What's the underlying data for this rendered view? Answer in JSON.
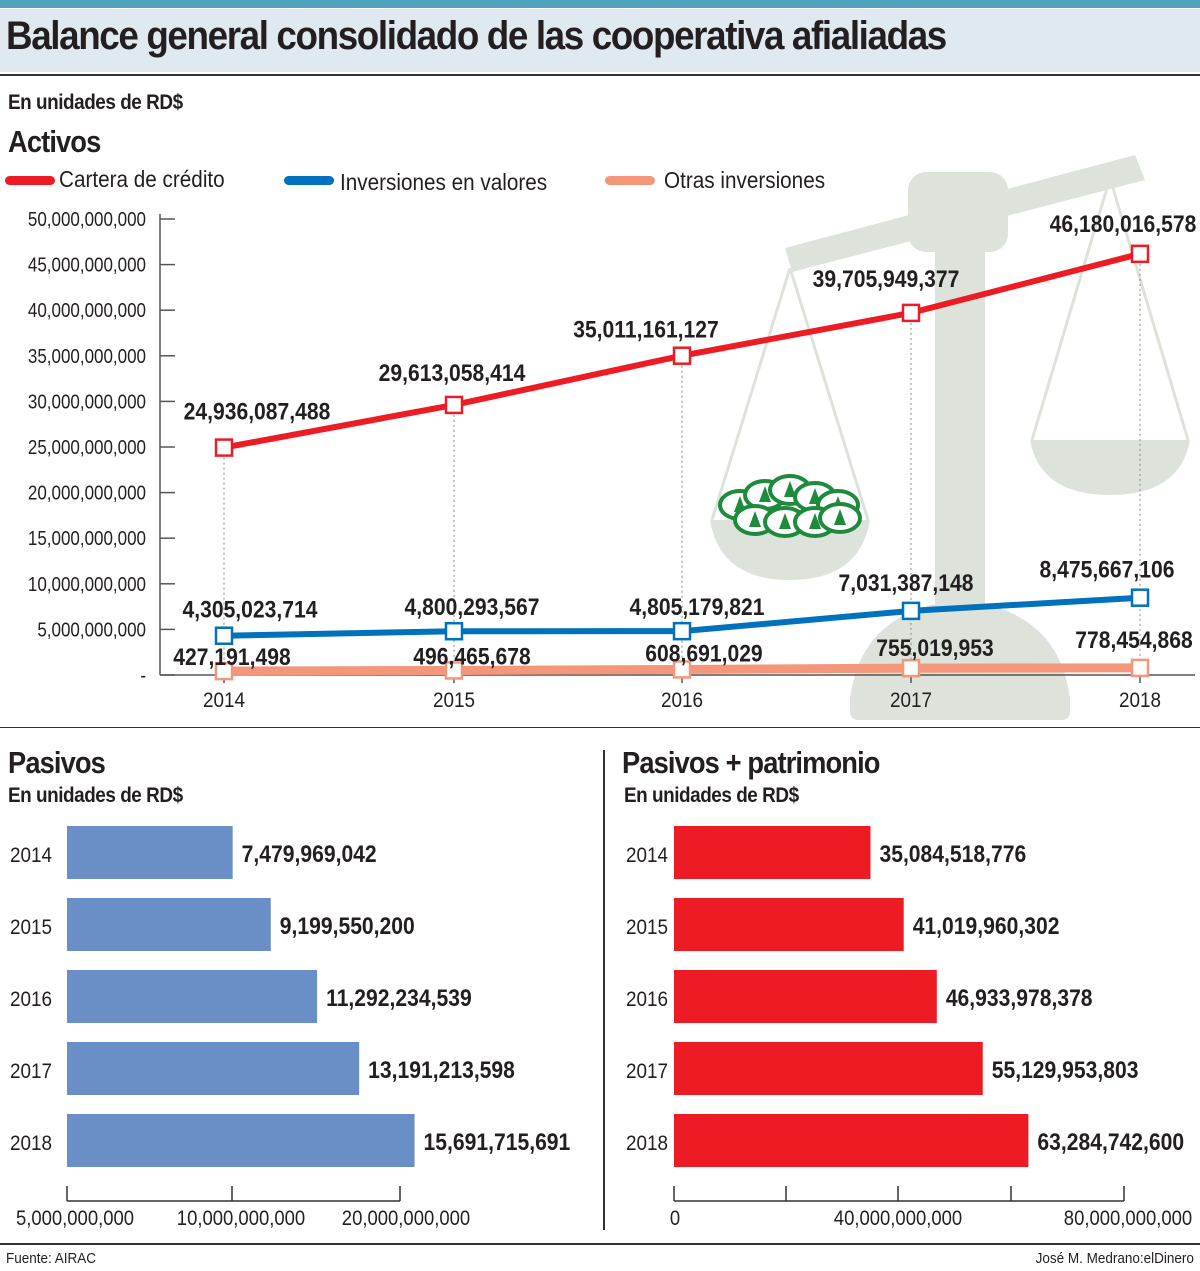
{
  "title": "Balance general consolidado de las cooperativa afialiadas",
  "units": "En unidades de RD$",
  "footer": {
    "source": "Fuente: AIRAC",
    "credit": "José M. Medrano:elDinero"
  },
  "colors": {
    "cartera": "#ed1c24",
    "inversiones": "#0071bc",
    "otras": "#f4967a",
    "pasivos": "#6a8fc6",
    "pasivos_patrimonio": "#ed1c24",
    "header": "#dfe9ef",
    "topbar": "#4ea3bd",
    "illustration": "#dde3da",
    "coins": "#1e8a3c"
  },
  "chart_data": [
    {
      "type": "line",
      "title": "Activos",
      "subtitle": "En unidades de RD$",
      "x": [
        "2014",
        "2015",
        "2016",
        "2017",
        "2018"
      ],
      "ylim": [
        0,
        50000000000
      ],
      "yticks": [
        "-",
        "5,000,000,000",
        "10,000,000,000",
        "15,000,000,000",
        "20,000,000,000",
        "25,000,000,000",
        "30,000,000,000",
        "35,000,000,000",
        "40,000,000,000",
        "45,000,000,000",
        "50,000,000,000"
      ],
      "legend_position": "top-left",
      "grid": false,
      "series": [
        {
          "name": "Cartera de crédito",
          "color": "#ed1c24",
          "values": [
            24936087488,
            29613058414,
            35011161127,
            39705949377,
            46180016578
          ],
          "labels": [
            "24,936,087,488",
            "29,613,058,414",
            "35,011,161,127",
            "39,705,949,377",
            "46,180,016,578"
          ]
        },
        {
          "name": "Inversiones en valores",
          "color": "#0071bc",
          "values": [
            4305023714,
            4800293567,
            4805179821,
            7031387148,
            8475667106
          ],
          "labels": [
            "4,305,023,714",
            "4,800,293,567",
            "4,805,179,821",
            "7,031,387,148",
            "8,475,667,106"
          ]
        },
        {
          "name": "Otras inversiones",
          "color": "#f4967a",
          "values": [
            427191498,
            496465678,
            608691029,
            755019953,
            778454868
          ],
          "labels": [
            "427,191,498",
            "496,465,678",
            "608,691,029",
            "755,019,953",
            "778,454,868"
          ]
        }
      ]
    },
    {
      "type": "bar",
      "orientation": "horizontal",
      "title": "Pasivos",
      "subtitle": "En unidades de RD$",
      "categories": [
        "2014",
        "2015",
        "2016",
        "2017",
        "2018"
      ],
      "values": [
        7479969042,
        9199550200,
        11292234539,
        13191213598,
        15691715691
      ],
      "labels": [
        "7,479,969,042",
        "9,199,550,200",
        "11,292,234,539",
        "13,191,213,598",
        "15,691,715,691"
      ],
      "xticks": [
        "5,000,000,000",
        "10,000,000,000",
        "20,000,000,000"
      ],
      "color": "#6a8fc6"
    },
    {
      "type": "bar",
      "orientation": "horizontal",
      "title": "Pasivos + patrimonio",
      "subtitle": "En unidades de RD$",
      "categories": [
        "2014",
        "2015",
        "2016",
        "2017",
        "2018"
      ],
      "values": [
        35084518776,
        41019960302,
        46933978378,
        55129953803,
        63284742600
      ],
      "labels": [
        "35,084,518,776",
        "41,019,960,302",
        "46,933,978,378",
        "55,129,953,803",
        "63,284,742,600"
      ],
      "xticks": [
        "0",
        "40,000,000,000",
        "80,000,000,000"
      ],
      "color": "#ed1c24"
    }
  ]
}
